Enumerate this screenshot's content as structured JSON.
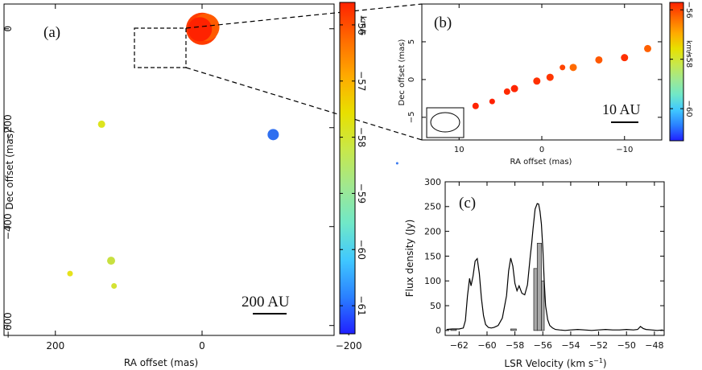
{
  "colors": {
    "cbar_stops": [
      "#ff2200",
      "#ff6a00",
      "#ffaa00",
      "#e8e000",
      "#c8e84a",
      "#a0e890",
      "#70e8c8",
      "#40c8ff",
      "#2a80ff",
      "#2020ff"
    ],
    "spectrum_fill": "#a8a8a8"
  },
  "chart_data": [
    {
      "id": "a",
      "type": "scatter",
      "panel_label": "(a)",
      "xlabel": "RA offset (mas)",
      "ylabel": "Dec offset (mas)",
      "xlim": [
        270,
        -180
      ],
      "ylim": [
        -620,
        50
      ],
      "xticks": [
        200,
        0,
        -200
      ],
      "xtick_labels": [
        "200",
        "0",
        "−200"
      ],
      "yticks": [
        0,
        -200,
        -400,
        -600
      ],
      "ytick_labels": [
        "0",
        "−200",
        "−400",
        "−600"
      ],
      "scale_bar": "200 AU",
      "points": [
        {
          "x": 0,
          "y": 0,
          "v": -56.2,
          "size": 20,
          "color": "#ff3c00"
        },
        {
          "x": -5,
          "y": 3,
          "v": -56.3,
          "size": 17,
          "color": "#ff5a00"
        },
        {
          "x": 3,
          "y": -1,
          "v": -56.1,
          "size": 15,
          "color": "#ff2200"
        },
        {
          "x": 137,
          "y": -193,
          "v": -57.9,
          "size": 4.5,
          "color": "#dde41e"
        },
        {
          "x": -97,
          "y": -214,
          "v": -60.8,
          "size": 7,
          "color": "#2f6ff0"
        },
        {
          "x": -266,
          "y": -272,
          "v": -60.7,
          "size": 1.5,
          "color": "#3a7af0"
        },
        {
          "x": 124,
          "y": -469,
          "v": -58.1,
          "size": 5,
          "color": "#c8e040"
        },
        {
          "x": 180,
          "y": -495,
          "v": -57.9,
          "size": 3.5,
          "color": "#e6e21c"
        },
        {
          "x": 120,
          "y": -520,
          "v": -58.0,
          "size": 3.5,
          "color": "#d4e233"
        }
      ],
      "colorbar": {
        "vmin": -61.5,
        "vmax": -55.6,
        "ticks": [
          -56,
          -57,
          -58,
          -59,
          -60,
          -61
        ],
        "tick_labels": [
          "−56",
          "−57",
          "−58",
          "−59",
          "−60",
          "−61"
        ],
        "unit": "km/s"
      }
    },
    {
      "id": "b",
      "type": "scatter",
      "panel_label": "(b)",
      "xlabel": "RA offset (mas)",
      "ylabel": "Dec offset (mas)",
      "xlim": [
        14.5,
        -14.5
      ],
      "ylim": [
        -8,
        10
      ],
      "xticks": [
        10,
        0,
        -10
      ],
      "xtick_labels": [
        "10",
        "0",
        "−10"
      ],
      "yticks": [
        5,
        0,
        -5
      ],
      "ytick_labels": [
        "5",
        "0",
        "−5"
      ],
      "scale_bar": "10 AU",
      "points": [
        {
          "x": 8.0,
          "y": -3.5,
          "color": "#ff2400",
          "size": 4
        },
        {
          "x": 6.0,
          "y": -2.9,
          "color": "#ff2000",
          "size": 3.5
        },
        {
          "x": 4.2,
          "y": -1.6,
          "color": "#ff2a00",
          "size": 4
        },
        {
          "x": 3.3,
          "y": -1.2,
          "color": "#ff2600",
          "size": 4.5
        },
        {
          "x": 0.6,
          "y": -0.2,
          "color": "#ff3000",
          "size": 4.5
        },
        {
          "x": -1.0,
          "y": 0.3,
          "color": "#ff3600",
          "size": 4.5
        },
        {
          "x": -2.5,
          "y": 1.6,
          "color": "#ff4400",
          "size": 3.5
        },
        {
          "x": -3.8,
          "y": 1.6,
          "color": "#ff6a00",
          "size": 4.5
        },
        {
          "x": -6.9,
          "y": 2.6,
          "color": "#ff5800",
          "size": 4.5
        },
        {
          "x": -10.0,
          "y": 2.9,
          "color": "#ff3000",
          "size": 4.5
        },
        {
          "x": -12.8,
          "y": 4.1,
          "color": "#ff6000",
          "size": 4.5
        }
      ],
      "colorbar": {
        "vmin": -61.3,
        "vmax": -55.7,
        "ticks": [
          -56,
          -58,
          -60
        ],
        "tick_labels": [
          "−56",
          "−58",
          "−60"
        ],
        "unit": "km/s"
      }
    },
    {
      "id": "c",
      "type": "line",
      "panel_label": "(c)",
      "xlabel": "LSR Velocity (km s",
      "xlabel_sup": "−1",
      "xlabel_end": ")",
      "ylabel": "Flux density (Jy)",
      "xlim": [
        -63,
        -47.3
      ],
      "ylim": [
        -10,
        300
      ],
      "xticks": [
        -62,
        -60,
        -58,
        -56,
        -54,
        -52,
        -50,
        -48
      ],
      "xtick_labels": [
        "−62",
        "−60",
        "−58",
        "−56",
        "−54",
        "−52",
        "−50",
        "−48"
      ],
      "yticks": [
        0,
        50,
        100,
        150,
        200,
        250,
        300
      ],
      "ytick_labels": [
        "0",
        "50",
        "100",
        "150",
        "200",
        "250",
        "300"
      ],
      "series": [
        {
          "x": [
            -62.9,
            -62.5,
            -62.0,
            -61.7,
            -61.55,
            -61.4,
            -61.25,
            -61.15,
            -61.0,
            -60.85,
            -60.7,
            -60.55,
            -60.4,
            -60.25,
            -60.1,
            -59.9,
            -59.7,
            -59.5,
            -59.2,
            -58.9,
            -58.6,
            -58.45,
            -58.3,
            -58.15,
            -58.0,
            -57.85,
            -57.7,
            -57.5,
            -57.3,
            -57.1,
            -56.9,
            -56.8,
            -56.7,
            -56.55,
            -56.4,
            -56.3,
            -56.2,
            -56.1,
            -56.0,
            -55.9,
            -55.8,
            -55.65,
            -55.5,
            -55.3,
            -55.1,
            -54.8,
            -54.4,
            -54.0,
            -53.5,
            -53.0,
            -52.5,
            -52.0,
            -51.5,
            -51.0,
            -50.5,
            -50.0,
            -49.5,
            -49.2,
            -49.0,
            -48.8,
            -48.6,
            -48.2,
            -47.8,
            -47.4
          ],
          "y": [
            2,
            3,
            3,
            5,
            20,
            70,
            105,
            90,
            110,
            140,
            145,
            115,
            65,
            30,
            12,
            6,
            5,
            6,
            10,
            25,
            70,
            120,
            146,
            130,
            95,
            80,
            90,
            75,
            72,
            92,
            150,
            175,
            205,
            245,
            256,
            255,
            240,
            215,
            165,
            100,
            50,
            22,
            10,
            5,
            2,
            1,
            0,
            1,
            2,
            1,
            0,
            1,
            2,
            1,
            1,
            2,
            1,
            2,
            8,
            4,
            2,
            1,
            0,
            1
          ]
        }
      ],
      "bars": [
        {
          "x_left": -62.6,
          "x_right": -62.2,
          "value": 3
        },
        {
          "x_left": -58.3,
          "x_right": -57.9,
          "value": 3
        },
        {
          "x_left": -56.65,
          "x_right": -56.4,
          "value": 125
        },
        {
          "x_left": -56.4,
          "x_right": -56.1,
          "value": 176
        },
        {
          "x_left": -56.1,
          "x_right": -55.9,
          "value": 100
        }
      ]
    }
  ]
}
